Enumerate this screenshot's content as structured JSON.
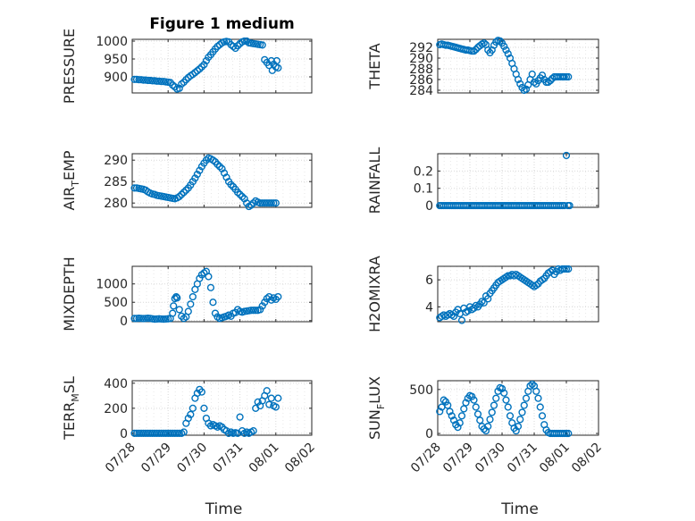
{
  "figure": {
    "title": "Figure 1 medium",
    "xlabel": "Time",
    "marker_color": "#0072BD"
  },
  "chart_data": [
    {
      "type": "scatter",
      "ylabel": "PRESSURE",
      "ylim": [
        855,
        1005
      ],
      "yticks": [
        900,
        950,
        1000
      ],
      "xlim": [
        0,
        4
      ],
      "xticks": [
        "07/28",
        "07/29",
        "07/30",
        "07/31",
        "08/01",
        "08/02"
      ],
      "show_xticks": false,
      "x": [
        0.05,
        0.1,
        0.15,
        0.2,
        0.25,
        0.3,
        0.35,
        0.4,
        0.45,
        0.5,
        0.55,
        0.6,
        0.65,
        0.7,
        0.75,
        0.8,
        0.85,
        0.9,
        0.95,
        1.0,
        1.05,
        1.1,
        1.15,
        1.2,
        1.25,
        1.3,
        1.35,
        1.4,
        1.45,
        1.5,
        1.55,
        1.6,
        1.65,
        1.7,
        1.75,
        1.8,
        1.85,
        1.9,
        1.95,
        2.0,
        2.05,
        2.1,
        2.15,
        2.2,
        2.25,
        2.3,
        2.35,
        2.4,
        2.45,
        2.5,
        2.55,
        2.6,
        2.65,
        2.7,
        2.75,
        2.8,
        2.85,
        2.9,
        2.95,
        3.0,
        3.05,
        3.1,
        3.12,
        3.15,
        3.2,
        3.22,
        3.25
      ],
      "y": [
        893,
        893,
        892,
        892,
        891,
        891,
        890,
        890,
        889,
        889,
        888,
        888,
        887,
        887,
        886,
        885,
        884,
        877,
        872,
        866,
        868,
        880,
        885,
        892,
        898,
        903,
        907,
        912,
        917,
        922,
        928,
        934,
        945,
        955,
        962,
        970,
        978,
        985,
        990,
        995,
        998,
        999,
        998,
        990,
        985,
        980,
        987,
        993,
        998,
        1000,
        1000,
        995,
        994,
        993,
        992,
        991,
        990,
        989,
        948,
        940,
        932,
        945,
        918,
        935,
        928,
        945,
        925
      ]
    },
    {
      "type": "scatter",
      "ylabel": "THETA",
      "ylim": [
        283.5,
        293.5
      ],
      "yticks": [
        284,
        286,
        288,
        290,
        292
      ],
      "xlim": [
        0,
        4
      ],
      "xticks": [
        "07/28",
        "07/29",
        "07/30",
        "07/31",
        "08/01",
        "08/02"
      ],
      "show_xticks": false,
      "x": [
        0.05,
        0.1,
        0.15,
        0.2,
        0.25,
        0.3,
        0.35,
        0.4,
        0.45,
        0.5,
        0.55,
        0.6,
        0.65,
        0.7,
        0.75,
        0.8,
        0.85,
        0.9,
        0.95,
        1.0,
        1.05,
        1.1,
        1.15,
        1.2,
        1.25,
        1.3,
        1.35,
        1.4,
        1.45,
        1.5,
        1.55,
        1.6,
        1.65,
        1.7,
        1.75,
        1.8,
        1.85,
        1.9,
        1.95,
        2.0,
        2.05,
        2.1,
        2.15,
        2.2,
        2.25,
        2.3,
        2.35,
        2.4,
        2.45,
        2.5,
        2.55,
        2.6,
        2.65,
        2.7,
        2.75,
        2.8,
        2.85,
        2.9,
        2.95,
        3.0,
        3.05,
        3.1,
        3.12,
        3.15,
        3.2,
        3.25
      ],
      "y": [
        292.5,
        292.6,
        292.5,
        292.4,
        292.4,
        292.3,
        292.2,
        292.1,
        292.0,
        291.9,
        291.8,
        291.7,
        291.6,
        291.5,
        291.5,
        291.4,
        291.3,
        291.3,
        291.6,
        292.0,
        292.3,
        292.6,
        292.8,
        292.5,
        291.5,
        291.0,
        291.5,
        292.4,
        293.0,
        293.3,
        293.2,
        292.8,
        292.2,
        291.5,
        290.8,
        290.0,
        289.0,
        288.0,
        287.0,
        286.0,
        285.2,
        284.5,
        284.0,
        284.2,
        285.0,
        286.0,
        287.0,
        285.5,
        285.2,
        285.8,
        286.3,
        286.8,
        286.0,
        285.5,
        285.5,
        285.8,
        286.2,
        286.5,
        286.5,
        286.5,
        286.5,
        286.5,
        286.5,
        286.5,
        286.5,
        286.5
      ]
    },
    {
      "type": "scatter",
      "ylabel": "AIR_TEMP",
      "ylim": [
        279,
        291.5
      ],
      "yticks": [
        280,
        285,
        290
      ],
      "xlim": [
        0,
        4
      ],
      "xticks": [
        "07/28",
        "07/29",
        "07/30",
        "07/31",
        "08/01",
        "08/02"
      ],
      "show_xticks": false,
      "x": [
        0.05,
        0.1,
        0.15,
        0.2,
        0.25,
        0.3,
        0.35,
        0.4,
        0.45,
        0.5,
        0.55,
        0.6,
        0.65,
        0.7,
        0.75,
        0.8,
        0.85,
        0.9,
        0.95,
        1.0,
        1.05,
        1.1,
        1.15,
        1.2,
        1.25,
        1.3,
        1.35,
        1.4,
        1.45,
        1.5,
        1.55,
        1.6,
        1.65,
        1.7,
        1.75,
        1.8,
        1.85,
        1.9,
        1.95,
        2.0,
        2.05,
        2.1,
        2.15,
        2.2,
        2.25,
        2.3,
        2.35,
        2.4,
        2.45,
        2.5,
        2.55,
        2.6,
        2.65,
        2.7,
        2.75,
        2.8,
        2.85,
        2.9,
        2.95,
        3.0,
        3.05,
        3.1,
        3.15,
        3.2
      ],
      "y": [
        283.5,
        283.5,
        283.4,
        283.3,
        283.2,
        283.0,
        282.6,
        282.3,
        282.1,
        282.0,
        281.8,
        281.7,
        281.6,
        281.5,
        281.4,
        281.3,
        281.2,
        281.1,
        281.0,
        281.2,
        281.5,
        282.0,
        282.5,
        283.0,
        283.5,
        284.2,
        285.0,
        285.8,
        286.7,
        287.6,
        288.5,
        289.3,
        290.0,
        290.5,
        290.3,
        290.0,
        289.6,
        289.0,
        288.5,
        288.0,
        287.0,
        286.0,
        285.0,
        284.3,
        283.8,
        283.2,
        282.5,
        282.0,
        281.5,
        281.0,
        280.0,
        279.2,
        279.5,
        280.0,
        280.5,
        280.2,
        280.0,
        280.0,
        280.0,
        280.0,
        280.0,
        280.0,
        280.0,
        280.0
      ]
    },
    {
      "type": "scatter",
      "ylabel": "RAINFALL",
      "ylim": [
        -0.01,
        0.3
      ],
      "yticks": [
        0,
        0.1,
        0.2
      ],
      "xlim": [
        0,
        4
      ],
      "xticks": [
        "07/28",
        "07/29",
        "07/30",
        "07/31",
        "08/01",
        "08/02"
      ],
      "show_xticks": false,
      "x": [
        0.05,
        0.1,
        0.15,
        0.2,
        0.25,
        0.3,
        0.35,
        0.4,
        0.45,
        0.5,
        0.55,
        0.6,
        0.65,
        0.7,
        0.75,
        0.8,
        0.85,
        0.9,
        0.95,
        1.0,
        1.05,
        1.1,
        1.15,
        1.2,
        1.25,
        1.3,
        1.35,
        1.4,
        1.45,
        1.5,
        1.55,
        1.6,
        1.65,
        1.7,
        1.75,
        1.8,
        1.85,
        1.9,
        1.95,
        2.0,
        2.05,
        2.1,
        2.15,
        2.2,
        2.25,
        2.3,
        2.35,
        2.4,
        2.45,
        2.5,
        2.55,
        2.6,
        2.65,
        2.7,
        2.75,
        2.8,
        2.85,
        2.9,
        2.95,
        3.0,
        3.05,
        3.1,
        3.15,
        3.2,
        3.24,
        3.28
      ],
      "y": [
        0,
        0,
        0,
        0,
        0,
        0,
        0,
        0,
        0,
        0,
        0,
        0,
        0,
        0,
        0,
        0,
        0,
        0,
        0,
        0,
        0,
        0,
        0,
        0,
        0,
        0,
        0,
        0,
        0,
        0,
        0,
        0,
        0,
        0,
        0,
        0,
        0,
        0,
        0,
        0,
        0,
        0,
        0,
        0,
        0,
        0,
        0,
        0,
        0,
        0,
        0,
        0,
        0,
        0,
        0,
        0,
        0,
        0,
        0,
        0,
        0,
        0,
        0,
        0.29,
        0,
        0
      ]
    },
    {
      "type": "scatter",
      "ylabel": "MIXDEPTH",
      "ylim": [
        -30,
        1480
      ],
      "yticks": [
        0,
        500,
        1000
      ],
      "xlim": [
        0,
        4
      ],
      "xticks": [
        "07/28",
        "07/29",
        "07/30",
        "07/31",
        "08/01",
        "08/02"
      ],
      "show_xticks": false,
      "x": [
        0.05,
        0.1,
        0.15,
        0.2,
        0.25,
        0.3,
        0.35,
        0.4,
        0.45,
        0.5,
        0.55,
        0.6,
        0.65,
        0.7,
        0.75,
        0.8,
        0.85,
        0.9,
        0.92,
        0.95,
        0.98,
        1.0,
        1.05,
        1.1,
        1.15,
        1.2,
        1.25,
        1.3,
        1.35,
        1.4,
        1.45,
        1.5,
        1.55,
        1.6,
        1.65,
        1.7,
        1.75,
        1.8,
        1.85,
        1.9,
        1.95,
        2.0,
        2.05,
        2.1,
        2.15,
        2.2,
        2.25,
        2.3,
        2.35,
        2.4,
        2.45,
        2.5,
        2.55,
        2.6,
        2.65,
        2.7,
        2.75,
        2.8,
        2.85,
        2.9,
        2.95,
        3.0,
        3.05,
        3.1,
        3.15,
        3.2,
        3.25
      ],
      "y": [
        60,
        60,
        65,
        60,
        55,
        60,
        65,
        60,
        50,
        40,
        45,
        50,
        45,
        40,
        45,
        50,
        60,
        200,
        400,
        600,
        650,
        620,
        300,
        120,
        60,
        100,
        250,
        450,
        650,
        850,
        1000,
        1150,
        1250,
        1300,
        1340,
        1200,
        900,
        500,
        200,
        100,
        60,
        80,
        100,
        120,
        150,
        120,
        200,
        220,
        300,
        250,
        230,
        250,
        260,
        270,
        280,
        280,
        280,
        280,
        300,
        400,
        500,
        600,
        650,
        560,
        620,
        580,
        650
      ]
    },
    {
      "type": "scatter",
      "ylabel": "H2OMIXRA",
      "ylim": [
        2.9,
        7.0
      ],
      "yticks": [
        4,
        6
      ],
      "xlim": [
        0,
        4
      ],
      "xticks": [
        "07/28",
        "07/29",
        "07/30",
        "07/31",
        "08/01",
        "08/02"
      ],
      "show_xticks": false,
      "x": [
        0.05,
        0.1,
        0.15,
        0.2,
        0.25,
        0.3,
        0.35,
        0.4,
        0.45,
        0.5,
        0.55,
        0.6,
        0.65,
        0.7,
        0.75,
        0.8,
        0.85,
        0.9,
        0.95,
        1.0,
        1.05,
        1.1,
        1.15,
        1.2,
        1.25,
        1.3,
        1.35,
        1.4,
        1.45,
        1.5,
        1.55,
        1.6,
        1.65,
        1.7,
        1.75,
        1.8,
        1.85,
        1.9,
        1.95,
        2.0,
        2.05,
        2.1,
        2.15,
        2.2,
        2.25,
        2.3,
        2.35,
        2.4,
        2.45,
        2.5,
        2.55,
        2.6,
        2.65,
        2.7,
        2.75,
        2.8,
        2.85,
        2.9,
        2.95,
        3.0,
        3.05,
        3.1,
        3.15,
        3.2,
        3.25
      ],
      "y": [
        3.2,
        3.3,
        3.4,
        3.3,
        3.4,
        3.5,
        3.4,
        3.3,
        3.6,
        3.8,
        3.5,
        3.0,
        3.9,
        3.6,
        3.7,
        4.0,
        3.8,
        3.9,
        4.1,
        4.0,
        4.2,
        4.4,
        4.3,
        4.8,
        4.6,
        5.0,
        5.2,
        5.4,
        5.6,
        5.8,
        5.9,
        6.0,
        6.1,
        6.2,
        6.3,
        6.3,
        6.4,
        6.3,
        6.4,
        6.3,
        6.2,
        6.1,
        6.0,
        5.9,
        5.8,
        5.7,
        5.6,
        5.5,
        5.6,
        5.7,
        5.9,
        6.0,
        6.1,
        6.3,
        6.5,
        6.6,
        6.7,
        6.4,
        6.6,
        6.8,
        6.7,
        6.8,
        6.8,
        6.8,
        6.8
      ]
    },
    {
      "type": "scatter",
      "ylabel": "TERR_MSL",
      "ylim": [
        -15,
        420
      ],
      "yticks": [
        0,
        200,
        400
      ],
      "xlim": [
        0,
        4
      ],
      "xticks": [
        "07/28",
        "07/29",
        "07/30",
        "07/31",
        "08/01",
        "08/02"
      ],
      "show_xticks": true,
      "x": [
        0.05,
        0.1,
        0.15,
        0.2,
        0.25,
        0.3,
        0.35,
        0.4,
        0.45,
        0.5,
        0.55,
        0.6,
        0.65,
        0.7,
        0.75,
        0.8,
        0.85,
        0.9,
        0.95,
        1.0,
        1.05,
        1.1,
        1.15,
        1.2,
        1.25,
        1.3,
        1.35,
        1.4,
        1.45,
        1.5,
        1.55,
        1.6,
        1.65,
        1.7,
        1.75,
        1.8,
        1.85,
        1.9,
        1.95,
        2.0,
        2.05,
        2.1,
        2.15,
        2.2,
        2.25,
        2.3,
        2.35,
        2.4,
        2.45,
        2.5,
        2.55,
        2.6,
        2.65,
        2.7,
        2.75,
        2.8,
        2.85,
        2.9,
        2.95,
        3.0,
        3.05,
        3.1,
        3.15,
        3.2,
        3.25
      ],
      "y": [
        0,
        0,
        0,
        0,
        0,
        0,
        0,
        0,
        0,
        0,
        0,
        0,
        0,
        0,
        0,
        0,
        0,
        0,
        0,
        0,
        0,
        0,
        10,
        80,
        120,
        150,
        200,
        280,
        320,
        350,
        330,
        200,
        120,
        80,
        60,
        70,
        60,
        50,
        60,
        50,
        30,
        20,
        0,
        10,
        0,
        5,
        0,
        130,
        20,
        0,
        10,
        0,
        10,
        20,
        200,
        250,
        220,
        260,
        300,
        340,
        230,
        280,
        220,
        210,
        280
      ]
    },
    {
      "type": "scatter",
      "ylabel": "SUN_FLUX",
      "ylim": [
        -20,
        600
      ],
      "yticks": [
        0,
        500
      ],
      "xlim": [
        0,
        4
      ],
      "xticks": [
        "07/28",
        "07/29",
        "07/30",
        "07/31",
        "08/01",
        "08/02"
      ],
      "show_xticks": true,
      "x": [
        0.05,
        0.1,
        0.15,
        0.2,
        0.25,
        0.3,
        0.35,
        0.4,
        0.45,
        0.5,
        0.55,
        0.6,
        0.65,
        0.7,
        0.75,
        0.8,
        0.85,
        0.9,
        0.95,
        1.0,
        1.05,
        1.1,
        1.15,
        1.2,
        1.25,
        1.3,
        1.35,
        1.4,
        1.45,
        1.5,
        1.55,
        1.6,
        1.65,
        1.7,
        1.75,
        1.8,
        1.85,
        1.9,
        1.95,
        2.0,
        2.05,
        2.1,
        2.15,
        2.2,
        2.25,
        2.3,
        2.35,
        2.4,
        2.45,
        2.5,
        2.55,
        2.6,
        2.65,
        2.7,
        2.75,
        2.8,
        2.85,
        2.9,
        2.95,
        3.0,
        3.05,
        3.1,
        3.15,
        3.2,
        3.25
      ],
      "y": [
        250,
        300,
        380,
        360,
        320,
        250,
        200,
        150,
        100,
        70,
        120,
        200,
        280,
        350,
        400,
        430,
        420,
        380,
        300,
        220,
        150,
        80,
        50,
        30,
        80,
        160,
        240,
        320,
        400,
        480,
        520,
        510,
        460,
        380,
        300,
        200,
        120,
        60,
        30,
        80,
        160,
        240,
        320,
        400,
        480,
        540,
        560,
        540,
        480,
        400,
        300,
        200,
        100,
        40,
        10,
        0,
        0,
        0,
        0,
        0,
        0,
        0,
        0,
        0,
        0
      ]
    }
  ]
}
